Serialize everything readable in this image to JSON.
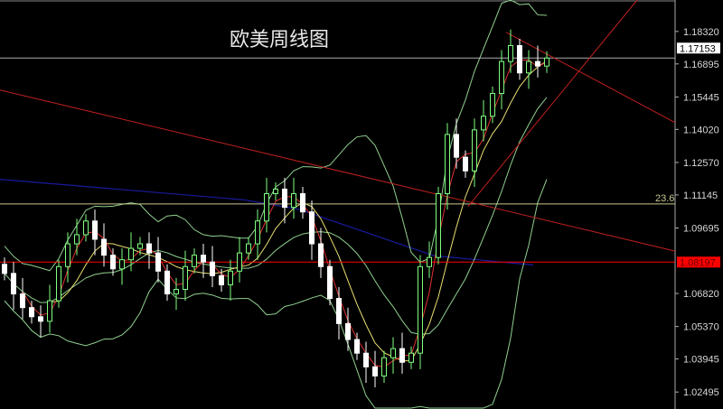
{
  "chart_data": {
    "type": "candlestick",
    "title": "欧美周线图",
    "ylim": [
      1.0175,
      1.197
    ],
    "y_ticks": [
      "1.18320",
      "1.16895",
      "1.15445",
      "1.14020",
      "1.12570",
      "1.11145",
      "1.09695",
      "1.06820",
      "1.05370",
      "1.03945",
      "1.02495"
    ],
    "closes": [
      1.077,
      1.068,
      1.062,
      1.058,
      1.056,
      1.065,
      1.08,
      1.09,
      1.094,
      1.1,
      1.092,
      1.085,
      1.079,
      1.083,
      1.088,
      1.09,
      1.086,
      1.078,
      1.068,
      1.07,
      1.08,
      1.085,
      1.082,
      1.076,
      1.072,
      1.078,
      1.086,
      1.09,
      1.1,
      1.112,
      1.114,
      1.106,
      1.112,
      1.104,
      1.09,
      1.08,
      1.066,
      1.055,
      1.048,
      1.042,
      1.036,
      1.032,
      1.04,
      1.044,
      1.038,
      1.042,
      1.08,
      1.084,
      1.112,
      1.138,
      1.128,
      1.122,
      1.14,
      1.146,
      1.156,
      1.17,
      1.177,
      1.165,
      1.17,
      1.168,
      1.17153
    ],
    "current_price": {
      "value": 1.17153,
      "label": "1.17153",
      "color": "#ffffff"
    },
    "support_line": {
      "value": 1.08197,
      "label": "1.08197",
      "color": "#ff0000"
    },
    "fib_line": {
      "value": 1.1075,
      "label": "23.6",
      "color": "#c8c890"
    },
    "long_ma": {
      "color": "#1a1aa0",
      "points": [
        [
          -0.5,
          1.1183
        ],
        [
          26.5,
          1.1093
        ],
        [
          32.5,
          1.1052
        ],
        [
          47.5,
          1.0848
        ],
        [
          58.5,
          1.0807
        ]
      ]
    },
    "trendlines": [
      {
        "color": "#c02020",
        "from": [
          -0.5,
          1.1575
        ],
        "to": [
          74.2,
          1.0868
        ]
      },
      {
        "color": "#c02020",
        "from": [
          51.3,
          1.1064
        ],
        "to": [
          70,
          1.197
        ]
      },
      {
        "color": "#c02020",
        "from": [
          55.5,
          1.1828
        ],
        "to": [
          74.2,
          1.1432
        ]
      }
    ],
    "colors": {
      "bull": "#7fff7f",
      "bear": "#ffffff",
      "bands": "#90d090",
      "ma_fast": "#e03030",
      "ma_slow": "#e8e070"
    }
  }
}
